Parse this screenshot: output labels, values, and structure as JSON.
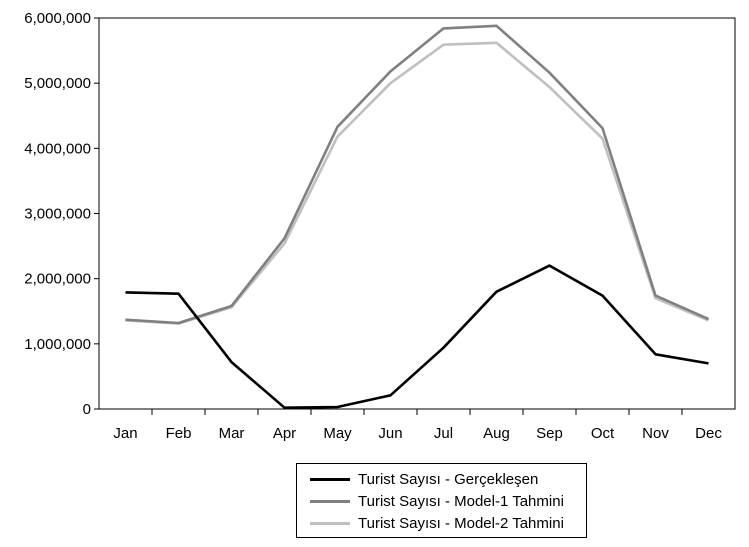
{
  "chart_data": {
    "type": "line",
    "title": "",
    "xlabel": "",
    "ylabel": "",
    "categories": [
      "Jan",
      "Feb",
      "Mar",
      "Apr",
      "May",
      "Jun",
      "Jul",
      "Aug",
      "Sep",
      "Oct",
      "Nov",
      "Dec"
    ],
    "ylim": [
      0,
      6000000
    ],
    "yticks": [
      {
        "value": 0,
        "label": "0"
      },
      {
        "value": 1000000,
        "label": "1,000,000"
      },
      {
        "value": 2000000,
        "label": "2,000,000"
      },
      {
        "value": 3000000,
        "label": "3,000,000"
      },
      {
        "value": 4000000,
        "label": "4,000,000"
      },
      {
        "value": 5000000,
        "label": "5,000,000"
      },
      {
        "value": 6000000,
        "label": "6,000,000"
      }
    ],
    "grid": false,
    "legend_position": "bottom-center",
    "series": [
      {
        "name": "Turist Sayısı - Gerçekleşen",
        "color": "#000000",
        "values": [
          1790000,
          1770000,
          720000,
          20000,
          30000,
          210000,
          940000,
          1800000,
          2200000,
          1740000,
          840000,
          700000
        ]
      },
      {
        "name": "Turist Sayısı - Model-1 Tahmini",
        "color": "#808080",
        "values": [
          1370000,
          1320000,
          1580000,
          2620000,
          4330000,
          5180000,
          5840000,
          5880000,
          5160000,
          4310000,
          1740000,
          1380000
        ]
      },
      {
        "name": "Turist Sayısı - Model-2 Tahmini",
        "color": "#c0c0c0",
        "values": [
          1360000,
          1310000,
          1560000,
          2540000,
          4180000,
          5000000,
          5590000,
          5620000,
          4940000,
          4150000,
          1700000,
          1360000
        ]
      }
    ]
  }
}
